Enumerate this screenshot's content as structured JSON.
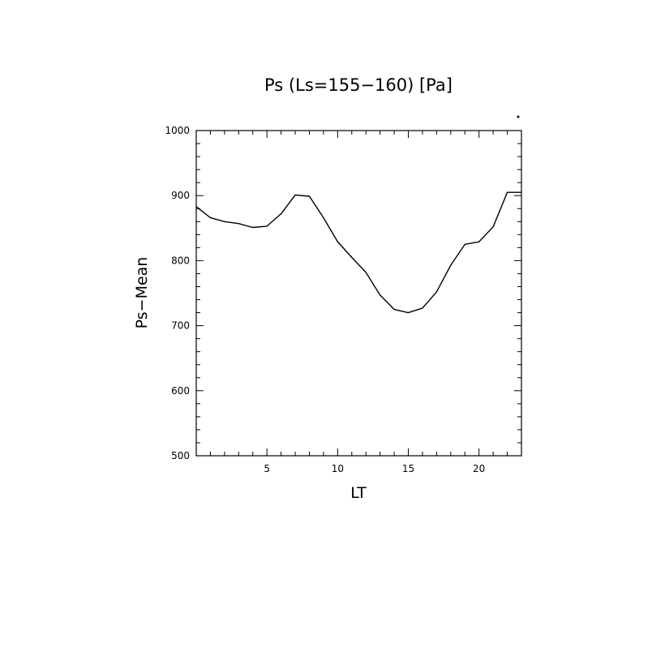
{
  "chart_data": {
    "type": "line",
    "title": "Ps (Ls=155−160) [Pa]",
    "xlabel": "LT",
    "ylabel": "Ps−Mean",
    "xlim": [
      0,
      23
    ],
    "ylim": [
      500,
      1000
    ],
    "xticks": [
      5,
      10,
      15,
      20
    ],
    "xtick_labels": [
      "5",
      "10",
      "15",
      "20"
    ],
    "yticks": [
      500,
      600,
      700,
      800,
      900,
      1000
    ],
    "ytick_labels": [
      "500",
      "600",
      "700",
      "800",
      "900",
      "1000"
    ],
    "grid": false,
    "series": [
      {
        "x": [
          0,
          1,
          2,
          3,
          4,
          5,
          6,
          7,
          8,
          9,
          10,
          11,
          12,
          13,
          14,
          15,
          16,
          17,
          18,
          19,
          20,
          21,
          22,
          23
        ],
        "y": [
          883,
          866,
          860,
          857,
          851,
          853,
          872,
          901,
          899,
          866,
          829,
          805,
          782,
          747,
          725,
          720,
          727,
          752,
          793,
          825,
          829,
          852,
          905,
          905
        ]
      }
    ]
  }
}
